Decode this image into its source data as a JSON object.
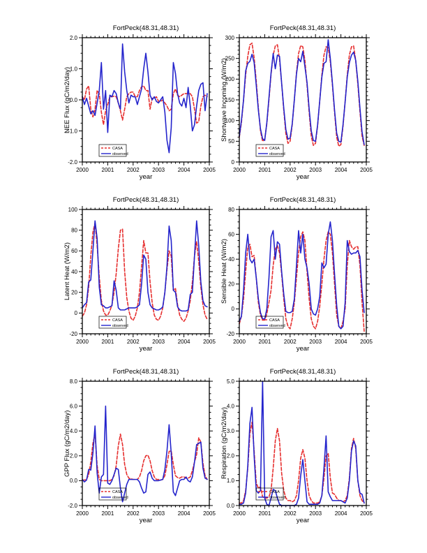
{
  "page": {
    "background": "#ffffff"
  },
  "style": {
    "axis_color": "#000000",
    "casa_color": "#e62e2e",
    "observed_color": "#2424cc"
  },
  "chart_data": [
    {
      "type": "line",
      "title": "FortPeck(48.31,48.31)",
      "ylabel": "NEE Flux (gC/m2/day)",
      "xlabel": "year",
      "xlim": [
        2000,
        2005
      ],
      "xtick_labels": [
        "2000",
        "2001",
        "2002",
        "2003",
        "2004",
        "2005"
      ],
      "x_minor_per_div": 5,
      "ylim": [
        -2.0,
        2.0
      ],
      "ytick_values": [
        -2,
        -1,
        0,
        1,
        2
      ],
      "ytick_labels": [
        "-2.0",
        "-1.0",
        "0.0",
        "1.0",
        "2.0"
      ],
      "y_minor_per_div": 3,
      "x_start": 2000.0,
      "x_step_years": 0.083333,
      "grid": false,
      "legend_position": "lower-left",
      "series": [
        {
          "name": "CASA",
          "color": "#e62e2e",
          "style": "dashed",
          "values": [
            0.1,
            0.0,
            0.35,
            0.45,
            -0.3,
            -0.55,
            -0.3,
            0.3,
            0.2,
            -0.4,
            -0.8,
            -0.35,
            -0.15,
            0.1,
            0.1,
            0.12,
            0.1,
            -0.1,
            -0.35,
            -0.65,
            -0.3,
            0.1,
            0.2,
            0.25,
            0.25,
            0.1,
            0.1,
            0.3,
            0.42,
            0.45,
            0.3,
            0.3,
            -0.3,
            0.05,
            0.05,
            0.1,
            -0.05,
            -0.05,
            0.0,
            -0.1,
            -0.2,
            -0.35,
            -0.3,
            0.2,
            0.35,
            0.15,
            0.1,
            0.15,
            0.2,
            0.2,
            0.2,
            0.2,
            0.1,
            -0.3,
            -0.75,
            -0.7,
            -0.2,
            0.1,
            0.15,
            0.1
          ]
        },
        {
          "name": "observed",
          "color": "#2424cc",
          "style": "solid",
          "values": [
            0.1,
            -0.15,
            0.05,
            -0.2,
            -0.45,
            -0.35,
            -0.5,
            -0.1,
            0.3,
            1.2,
            -0.3,
            0.3,
            -1.05,
            0.15,
            0.1,
            0.3,
            0.2,
            -0.1,
            -0.3,
            1.8,
            0.9,
            0.3,
            -0.1,
            0.15,
            0.1,
            0.1,
            -0.15,
            0.1,
            0.35,
            1.0,
            1.5,
            0.9,
            0.15,
            0.0,
            0.1,
            -0.05,
            -0.1,
            0.0,
            0.1,
            -0.4,
            -1.3,
            -1.7,
            -0.9,
            1.2,
            0.85,
            0.2,
            -0.1,
            -0.2,
            0.05,
            -0.25,
            0.4,
            -0.2,
            -1.0,
            -0.8,
            -0.2,
            0.3,
            0.5,
            0.55,
            -0.35,
            0.2
          ]
        }
      ]
    },
    {
      "type": "line",
      "title": "FortPeck(48.31,48.31)",
      "ylabel": "Shortwave Incoming (W/m2)",
      "xlabel": "year",
      "xlim": [
        2000,
        2005
      ],
      "xtick_labels": [
        "2000",
        "2001",
        "2002",
        "2003",
        "2004",
        "2005"
      ],
      "x_minor_per_div": 5,
      "ylim": [
        0,
        300
      ],
      "ytick_values": [
        0,
        50,
        100,
        150,
        200,
        250,
        300
      ],
      "ytick_labels": [
        "0",
        "50",
        "100",
        "150",
        "200",
        "250",
        "300"
      ],
      "y_minor_per_div": 4,
      "x_start": 2000.0,
      "x_step_years": 0.083333,
      "grid": false,
      "legend_position": "lower-left",
      "series": [
        {
          "name": "CASA",
          "color": "#e62e2e",
          "style": "dashed",
          "values": [
            60,
            95,
            150,
            210,
            255,
            283,
            287,
            252,
            195,
            130,
            75,
            50,
            55,
            92,
            150,
            212,
            258,
            280,
            283,
            248,
            190,
            125,
            68,
            45,
            50,
            90,
            150,
            215,
            262,
            281,
            278,
            245,
            185,
            120,
            62,
            40,
            45,
            88,
            148,
            210,
            258,
            278,
            276,
            242,
            185,
            120,
            60,
            38,
            42,
            86,
            146,
            210,
            258,
            278,
            280,
            245,
            188,
            122,
            62,
            40
          ]
        },
        {
          "name": "observed",
          "color": "#2424cc",
          "style": "solid",
          "values": [
            62,
            100,
            150,
            220,
            238,
            243,
            260,
            240,
            185,
            125,
            80,
            56,
            52,
            95,
            155,
            215,
            262,
            225,
            258,
            255,
            190,
            130,
            78,
            55,
            58,
            92,
            150,
            212,
            250,
            242,
            267,
            230,
            192,
            128,
            75,
            52,
            50,
            90,
            148,
            205,
            238,
            242,
            295,
            250,
            190,
            125,
            70,
            50,
            48,
            90,
            145,
            205,
            240,
            258,
            265,
            245,
            195,
            130,
            72,
            42
          ]
        }
      ]
    },
    {
      "type": "line",
      "title": "FortPeck(48.31,48.31)",
      "ylabel": "Latent Heat (W/m2)",
      "xlabel": "year",
      "xlim": [
        2000,
        2005
      ],
      "xtick_labels": [
        "2000",
        "2001",
        "2002",
        "2003",
        "2004",
        "2005"
      ],
      "x_minor_per_div": 5,
      "ylim": [
        -20,
        100
      ],
      "ytick_values": [
        -20,
        0,
        20,
        40,
        60,
        80,
        100
      ],
      "ytick_labels": [
        "-20",
        "0",
        "20",
        "40",
        "60",
        "80",
        "100"
      ],
      "y_minor_per_div": 3,
      "x_start": 2000.0,
      "x_step_years": 0.083333,
      "grid": false,
      "legend_position": "lower-left",
      "series": [
        {
          "name": "CASA",
          "color": "#e62e2e",
          "style": "dashed",
          "values": [
            -3,
            0,
            8,
            25,
            55,
            78,
            87,
            65,
            35,
            12,
            2,
            -2,
            -2,
            2,
            8,
            20,
            38,
            62,
            80,
            81,
            40,
            15,
            2,
            -5,
            -7,
            -3,
            5,
            20,
            45,
            70,
            58,
            58,
            30,
            10,
            -2,
            -6,
            -7,
            -3,
            5,
            20,
            42,
            60,
            55,
            22,
            24,
            8,
            -2,
            -6,
            -8,
            -5,
            2,
            12,
            30,
            55,
            69,
            50,
            25,
            8,
            -2,
            -6
          ]
        },
        {
          "name": "observed",
          "color": "#2424cc",
          "style": "solid",
          "values": [
            5,
            8,
            10,
            30,
            32,
            60,
            89,
            72,
            25,
            8,
            7,
            5,
            5,
            6,
            7,
            31,
            22,
            5,
            3,
            3,
            3,
            4,
            5,
            5,
            5,
            5,
            6,
            8,
            28,
            56,
            52,
            20,
            8,
            5,
            4,
            3,
            3,
            4,
            6,
            20,
            45,
            84,
            70,
            22,
            20,
            6,
            3,
            2,
            2,
            2,
            3,
            18,
            20,
            55,
            89,
            65,
            30,
            12,
            7,
            6
          ]
        }
      ]
    },
    {
      "type": "line",
      "title": "FortPeck(48.31,48.31)",
      "ylabel": "Sensible Heat (W/m2)",
      "xlabel": "year",
      "xlim": [
        2000,
        2005
      ],
      "xtick_labels": [
        "2000",
        "2001",
        "2002",
        "2003",
        "2004",
        "2005"
      ],
      "x_minor_per_div": 5,
      "ylim": [
        -20,
        80
      ],
      "ytick_values": [
        -20,
        0,
        20,
        40,
        60,
        80
      ],
      "ytick_labels": [
        "-20",
        "0",
        "20",
        "40",
        "60",
        "80"
      ],
      "y_minor_per_div": 3,
      "x_start": 2000.0,
      "x_step_years": 0.083333,
      "grid": false,
      "legend_position": "lower-left",
      "series": [
        {
          "name": "CASA",
          "color": "#e62e2e",
          "style": "dashed",
          "values": [
            -12,
            -6,
            8,
            30,
            50,
            52,
            42,
            43,
            25,
            5,
            -5,
            -9,
            -9,
            -4,
            5,
            15,
            35,
            48,
            51,
            45,
            28,
            8,
            -8,
            -14,
            -16,
            -8,
            5,
            25,
            45,
            58,
            62,
            55,
            30,
            8,
            -8,
            -14,
            -16,
            -10,
            2,
            20,
            40,
            55,
            62,
            60,
            45,
            20,
            -5,
            -14,
            -16,
            -10,
            0,
            35,
            55,
            50,
            48,
            50,
            50,
            35,
            5,
            -18
          ]
        },
        {
          "name": "observed",
          "color": "#2424cc",
          "style": "solid",
          "values": [
            -10,
            -6,
            15,
            45,
            60,
            40,
            37,
            40,
            25,
            8,
            -3,
            -8,
            -8,
            0,
            25,
            58,
            63,
            40,
            54,
            52,
            30,
            12,
            -2,
            -3,
            -3,
            -2,
            8,
            35,
            63,
            45,
            60,
            40,
            33,
            20,
            0,
            -4,
            -5,
            0,
            10,
            37,
            33,
            36,
            60,
            70,
            55,
            28,
            3,
            -14,
            -16,
            -14,
            5,
            55,
            46,
            44,
            45,
            45,
            47,
            42,
            15,
            -3
          ]
        }
      ]
    },
    {
      "type": "line",
      "title": "FortPeck(48.31,48.31)",
      "ylabel": "GPP Flux (gC/m2/day)",
      "xlabel": "year",
      "xlim": [
        2000,
        2005
      ],
      "xtick_labels": [
        "2000",
        "2001",
        "2002",
        "2003",
        "2004",
        "2005"
      ],
      "x_minor_per_div": 5,
      "ylim": [
        -2.0,
        8.0
      ],
      "ytick_values": [
        -2,
        0,
        2,
        4,
        6,
        8
      ],
      "ytick_labels": [
        "-2.0",
        "0.0",
        "2.0",
        "4.0",
        "6.0",
        "8.0"
      ],
      "y_minor_per_div": 3,
      "x_start": 2000.0,
      "x_step_years": 0.083333,
      "grid": false,
      "legend_position": "lower-left",
      "series": [
        {
          "name": "CASA",
          "color": "#e62e2e",
          "style": "dashed",
          "values": [
            0.05,
            0.05,
            0.1,
            0.5,
            1.5,
            3.0,
            3.8,
            1.2,
            0.1,
            0.0,
            0.0,
            0.0,
            0.0,
            0.0,
            0.1,
            0.4,
            1.2,
            2.8,
            3.75,
            2.9,
            1.3,
            0.5,
            0.2,
            0.15,
            0.1,
            0.1,
            0.1,
            0.3,
            0.8,
            1.6,
            2.0,
            2.05,
            1.6,
            0.8,
            0.3,
            0.1,
            0.1,
            0.05,
            0.1,
            0.4,
            1.3,
            2.35,
            2.4,
            1.3,
            0.4,
            0.25,
            0.2,
            0.3,
            0.3,
            0.2,
            0.2,
            0.3,
            0.8,
            1.5,
            2.1,
            3.45,
            3.1,
            1.4,
            0.4,
            0.1
          ]
        },
        {
          "name": "observed",
          "color": "#2424cc",
          "style": "solid",
          "values": [
            0.1,
            -0.1,
            0.05,
            0.9,
            0.85,
            2.2,
            4.4,
            0.6,
            -1.0,
            0.3,
            0.5,
            6.0,
            -0.2,
            -0.3,
            0.0,
            0.5,
            1.0,
            0.9,
            -0.6,
            -1.7,
            -1.0,
            -0.3,
            0.1,
            0.1,
            0.1,
            0.1,
            0.1,
            -0.1,
            -0.6,
            -1.0,
            -0.9,
            0.5,
            0.7,
            0.2,
            0.0,
            0.0,
            0.0,
            0.05,
            0.1,
            0.9,
            2.4,
            4.5,
            2.2,
            -0.9,
            -1.2,
            -0.6,
            0.0,
            0.1,
            0.1,
            0.3,
            0.0,
            -0.1,
            0.3,
            1.5,
            2.9,
            3.0,
            3.1,
            1.0,
            0.2,
            0.1
          ]
        }
      ]
    },
    {
      "type": "line",
      "title": "FortPeck(48.31,48.31)",
      "ylabel": "Respiration (gC/m2/day)",
      "xlabel": "year",
      "xlim": [
        2000,
        2005
      ],
      "xtick_labels": [
        "2000",
        "2001",
        "2002",
        "2003",
        "2004",
        "2005"
      ],
      "x_minor_per_div": 5,
      "ylim": [
        0.0,
        5.0
      ],
      "ytick_values": [
        0,
        1,
        2,
        3,
        4,
        5
      ],
      "ytick_labels": [
        "0.0",
        "1.0",
        "2.0",
        "3.0",
        "4.0",
        "5.0"
      ],
      "y_minor_per_div": 3,
      "x_start": 2000.0,
      "x_step_years": 0.083333,
      "grid": false,
      "legend_position": "lower-left",
      "series": [
        {
          "name": "CASA",
          "color": "#e62e2e",
          "style": "dashed",
          "values": [
            0.1,
            0.1,
            0.2,
            0.6,
            1.5,
            2.9,
            3.35,
            2.2,
            0.9,
            0.7,
            0.75,
            0.35,
            0.3,
            0.3,
            0.35,
            0.6,
            1.5,
            2.6,
            3.1,
            2.6,
            1.3,
            0.6,
            0.3,
            0.2,
            0.2,
            0.15,
            0.2,
            0.4,
            1.0,
            1.9,
            2.25,
            1.9,
            1.0,
            0.4,
            0.2,
            0.1,
            0.1,
            0.1,
            0.15,
            0.4,
            1.1,
            2.0,
            2.1,
            1.1,
            0.5,
            0.45,
            0.3,
            0.2,
            0.2,
            0.15,
            0.2,
            0.4,
            1.1,
            2.3,
            2.7,
            2.3,
            1.0,
            0.4,
            0.2,
            0.1
          ]
        },
        {
          "name": "observed",
          "color": "#2424cc",
          "style": "solid",
          "values": [
            0.05,
            0.05,
            0.1,
            0.5,
            1.6,
            3.3,
            3.95,
            2.0,
            0.6,
            0.5,
            0.6,
            5.0,
            0.3,
            0.05,
            0.0,
            0.3,
            0.65,
            0.6,
            0.3,
            0.05,
            0.0,
            0.0,
            0.0,
            0.0,
            0.0,
            0.0,
            0.0,
            0.05,
            0.3,
            1.2,
            1.85,
            1.0,
            0.15,
            0.05,
            0.05,
            0.05,
            0.05,
            0.05,
            0.1,
            0.4,
            1.5,
            2.8,
            0.55,
            0.35,
            0.2,
            0.2,
            0.2,
            0.2,
            0.2,
            0.15,
            0.1,
            0.3,
            1.0,
            2.2,
            2.6,
            2.4,
            1.0,
            0.5,
            0.45,
            0.1
          ]
        }
      ]
    }
  ]
}
